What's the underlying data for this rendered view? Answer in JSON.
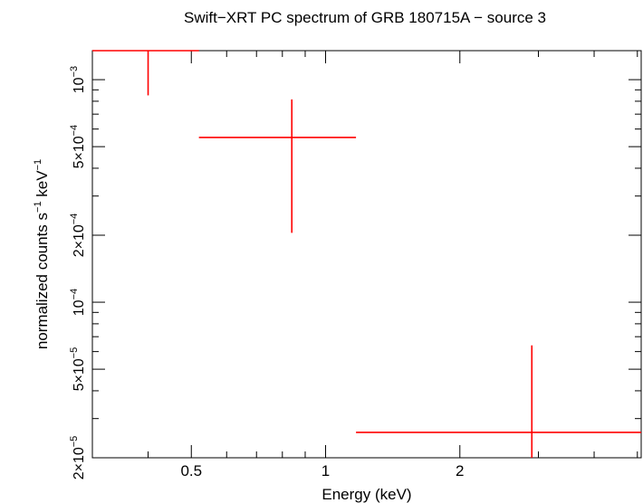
{
  "chart_data": {
    "type": "scatter",
    "title": "Swift−XRT PC spectrum of GRB 180715A − source 3",
    "xlabel": "Energy (keV)",
    "ylabel_parts": [
      "normalized counts s",
      "−1",
      " keV",
      "−1"
    ],
    "x_scale": "log",
    "y_scale": "log",
    "xlim": [
      0.3,
      5.1
    ],
    "ylim": [
      2e-05,
      0.00135
    ],
    "x_ticks": [
      {
        "value": 0.5,
        "label": "0.5"
      },
      {
        "value": 1,
        "label": "1"
      },
      {
        "value": 2,
        "label": "2"
      }
    ],
    "y_ticks": [
      {
        "value": 2e-05,
        "base": "2×10",
        "exp": "−5"
      },
      {
        "value": 5e-05,
        "base": "5×10",
        "exp": "−5"
      },
      {
        "value": 0.0001,
        "base": "10",
        "exp": "−4"
      },
      {
        "value": 0.0002,
        "base": "2×10",
        "exp": "−4"
      },
      {
        "value": 0.0005,
        "base": "5×10",
        "exp": "−4"
      },
      {
        "value": 0.001,
        "base": "10",
        "exp": "−3"
      }
    ],
    "color": "#ff0000",
    "points": [
      {
        "x": 0.4,
        "xlo": 0.3,
        "xhi": 0.52,
        "y": 0.00135,
        "ylo": 0.00085,
        "yhi": 0.00135
      },
      {
        "x": 0.84,
        "xlo": 0.52,
        "xhi": 1.17,
        "y": 0.00055,
        "ylo": 0.000205,
        "yhi": 0.000815
      },
      {
        "x": 2.9,
        "xlo": 1.17,
        "xhi": 5.1,
        "y": 2.6e-05,
        "ylo": 2e-05,
        "yhi": 6.4e-05
      }
    ]
  }
}
